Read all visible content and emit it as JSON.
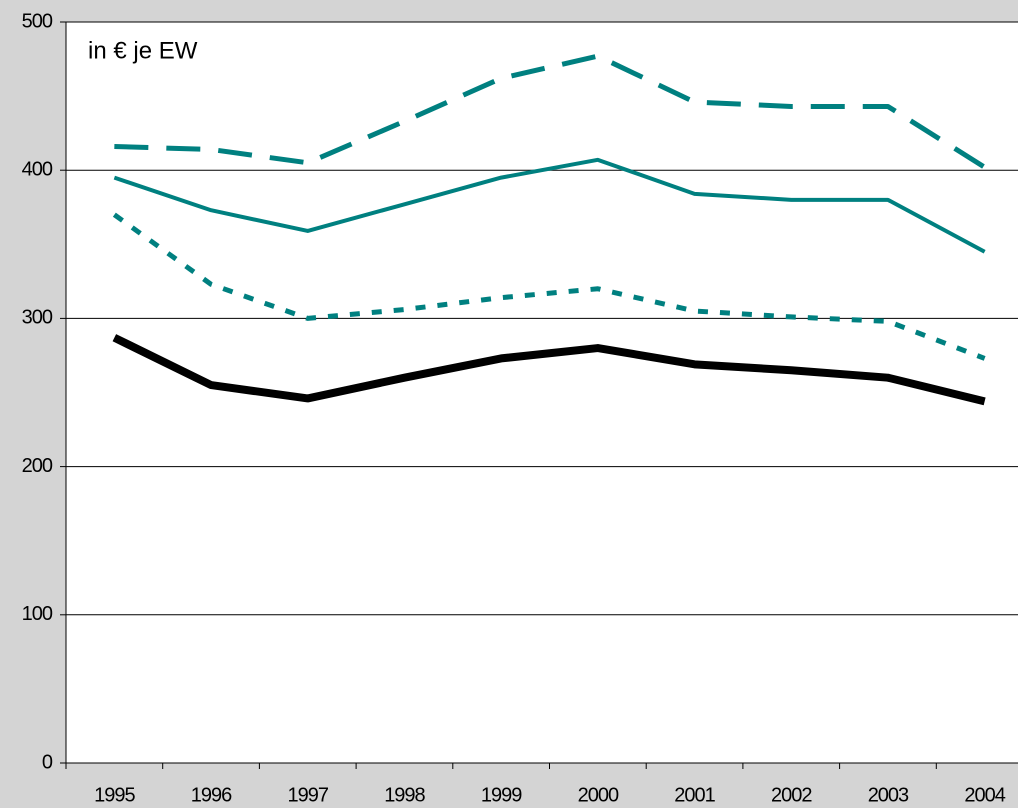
{
  "chart_data": {
    "type": "line",
    "annotation": "in € je EW",
    "categories": [
      "1995",
      "1996",
      "1997",
      "1998",
      "1999",
      "2000",
      "2001",
      "2002",
      "2003",
      "2004"
    ],
    "series": [
      {
        "color": "#008080",
        "dash": "dashed",
        "width": 5,
        "values": [
          416,
          414,
          405,
          433,
          462,
          477,
          446,
          443,
          443,
          402
        ]
      },
      {
        "color": "#008080",
        "dash": "solid",
        "width": 4,
        "values": [
          395,
          373,
          359,
          377,
          395,
          407,
          384,
          380,
          380,
          345
        ]
      },
      {
        "color": "#008080",
        "dash": "dotted",
        "width": 5,
        "values": [
          370,
          323,
          300,
          306,
          314,
          320,
          305,
          301,
          298,
          273
        ]
      },
      {
        "color": "#000000",
        "dash": "solid",
        "width": 8,
        "values": [
          287,
          255,
          246,
          260,
          273,
          280,
          269,
          265,
          260,
          244
        ]
      }
    ],
    "ylim": [
      0,
      500
    ],
    "yticks": [
      0,
      100,
      200,
      300,
      400,
      500
    ],
    "grid": true
  }
}
